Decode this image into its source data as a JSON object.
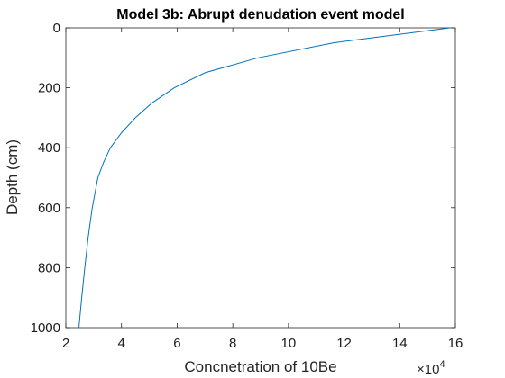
{
  "chart_data": {
    "type": "line",
    "title": "Model 3b: Abrupt denudation event model",
    "xlabel": "Concnetration of 10Be",
    "ylabel": "Depth (cm)",
    "x_multiplier": {
      "base": "×10",
      "exponent": "4"
    },
    "xlim": [
      2,
      16
    ],
    "ylim": [
      0,
      1000
    ],
    "y_reversed": true,
    "xticks": [
      2,
      4,
      6,
      8,
      10,
      12,
      14,
      16
    ],
    "yticks": [
      0,
      200,
      400,
      600,
      800,
      1000
    ],
    "grid": false,
    "series": [
      {
        "color": "#0072BD",
        "x": [
          15.8,
          11.6,
          8.9,
          7.0,
          5.9,
          5.1,
          4.5,
          4.0,
          3.6,
          3.35,
          3.15,
          2.95,
          2.8,
          2.68,
          2.57,
          2.47,
          2.42
        ],
        "y": [
          0,
          50,
          100,
          150,
          200,
          250,
          300,
          350,
          400,
          450,
          500,
          600,
          700,
          800,
          900,
          1000,
          1000
        ]
      }
    ]
  }
}
